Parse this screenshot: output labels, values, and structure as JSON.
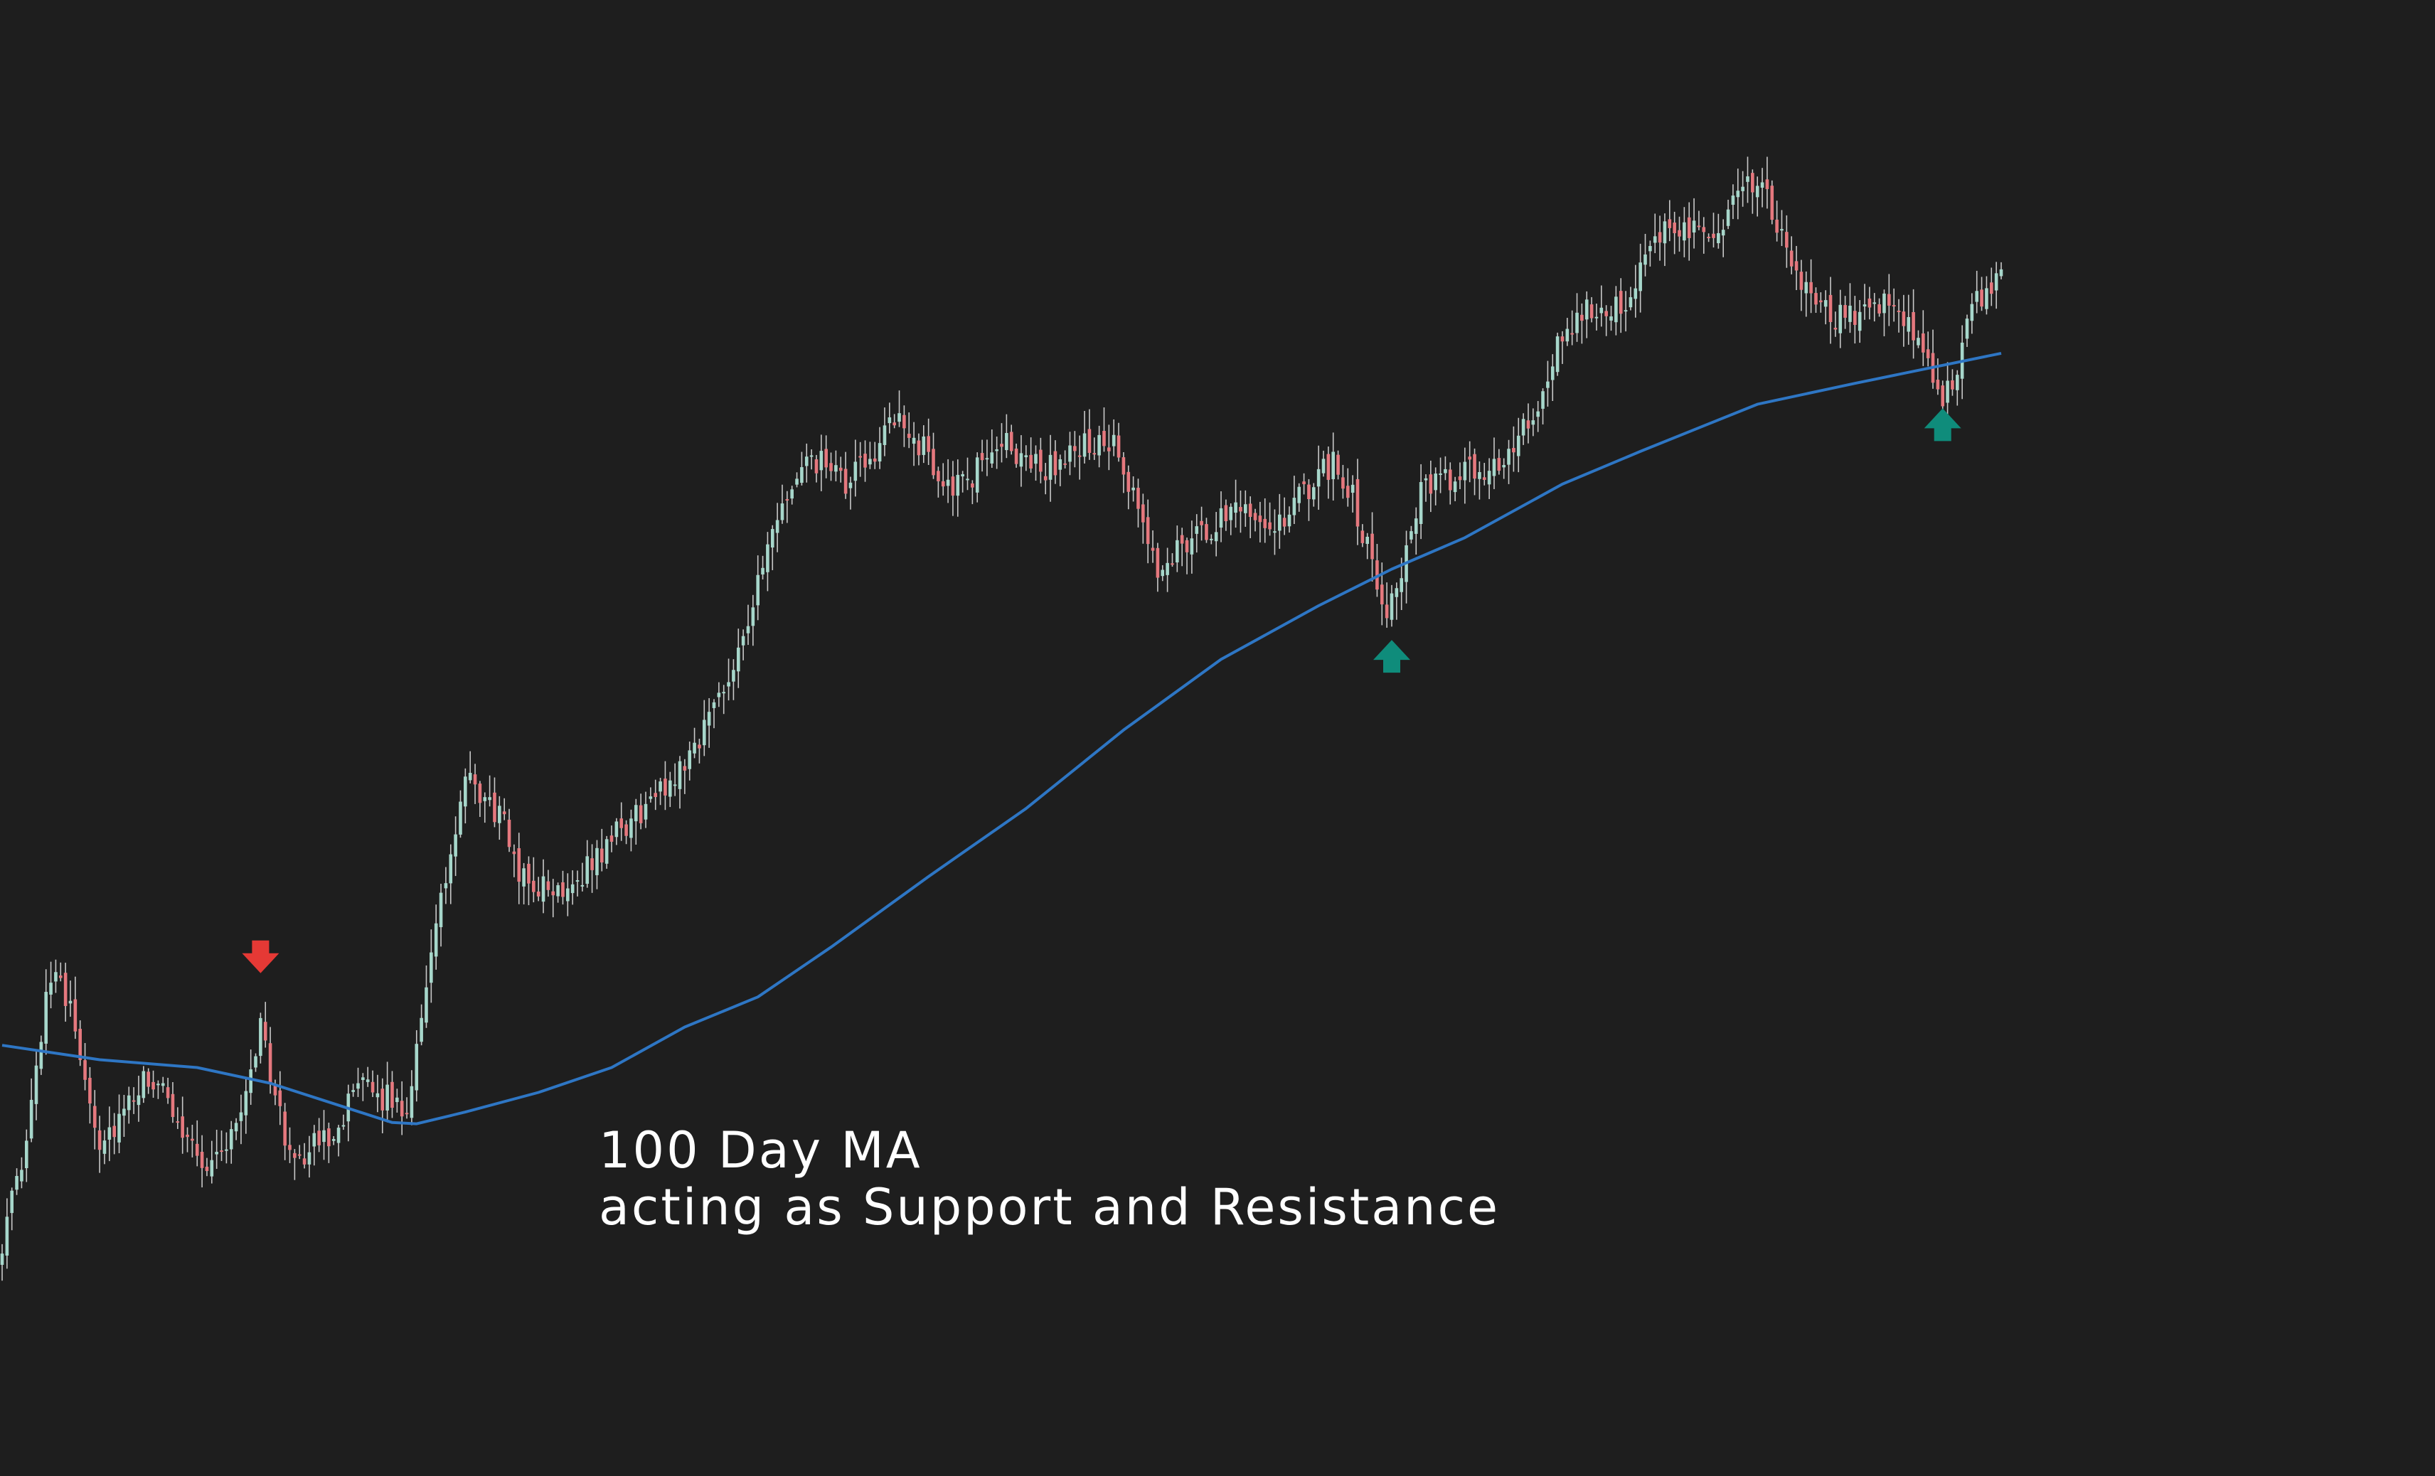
{
  "chart_data": {
    "type": "candlestick",
    "background": "#1e1e1e",
    "colors": {
      "up": "#a7d7cb",
      "down": "#e5787e",
      "wick": "#c9c9c9",
      "moving_average": "#2e76c4",
      "support_arrow": "#0f8c7b",
      "resistance_arrow": "#e53935"
    },
    "grid": false,
    "axes_visible": false,
    "ylim": [
      0,
      100
    ],
    "annotation_lines": [
      "100 Day MA",
      "acting as Support and Resistance"
    ],
    "moving_average": {
      "period": 100,
      "points": [
        [
          0,
          23.9
        ],
        [
          20,
          22.8
        ],
        [
          40,
          22.2
        ],
        [
          55,
          21.0
        ],
        [
          70,
          19.2
        ],
        [
          80,
          18.0
        ],
        [
          85,
          17.9
        ],
        [
          95,
          18.8
        ],
        [
          110,
          20.3
        ],
        [
          125,
          22.2
        ],
        [
          140,
          25.3
        ],
        [
          155,
          27.6
        ],
        [
          170,
          31.4
        ],
        [
          190,
          36.8
        ],
        [
          210,
          42.0
        ],
        [
          230,
          48.0
        ],
        [
          250,
          53.4
        ],
        [
          270,
          57.5
        ],
        [
          285,
          60.3
        ],
        [
          300,
          62.7
        ],
        [
          320,
          66.8
        ],
        [
          336,
          69.3
        ],
        [
          350,
          71.4
        ],
        [
          360,
          72.9
        ],
        [
          380,
          74.5
        ],
        [
          410,
          76.8
        ]
      ]
    },
    "markers": [
      {
        "type": "resistance",
        "direction": "down",
        "bar": 53,
        "value": 30.5
      },
      {
        "type": "support",
        "direction": "up",
        "bar": 285,
        "value": 53.8
      },
      {
        "type": "support",
        "direction": "up",
        "bar": 398,
        "value": 71.5
      }
    ],
    "path_keypoints": [
      [
        0,
        9.0
      ],
      [
        5,
        16.0
      ],
      [
        9,
        28.0
      ],
      [
        11,
        30.5
      ],
      [
        16,
        23.5
      ],
      [
        20,
        16.5
      ],
      [
        25,
        18.5
      ],
      [
        30,
        21.5
      ],
      [
        35,
        19.0
      ],
      [
        42,
        14.5
      ],
      [
        48,
        17.5
      ],
      [
        53,
        25.5
      ],
      [
        58,
        16.5
      ],
      [
        62,
        15.5
      ],
      [
        68,
        17.5
      ],
      [
        73,
        20.5
      ],
      [
        78,
        20.0
      ],
      [
        83,
        19.0
      ],
      [
        87,
        29.0
      ],
      [
        95,
        44.0
      ],
      [
        102,
        41.5
      ],
      [
        107,
        36.5
      ],
      [
        113,
        35.5
      ],
      [
        120,
        37.5
      ],
      [
        126,
        40.0
      ],
      [
        133,
        42.5
      ],
      [
        137,
        44.0
      ],
      [
        143,
        47.5
      ],
      [
        148,
        51.5
      ],
      [
        153,
        56.5
      ],
      [
        157,
        61.5
      ],
      [
        161,
        66.0
      ],
      [
        165,
        68.0
      ],
      [
        168,
        68.5
      ],
      [
        173,
        66.5
      ],
      [
        178,
        69.0
      ],
      [
        183,
        71.5
      ],
      [
        188,
        70.0
      ],
      [
        193,
        67.0
      ],
      [
        198,
        66.5
      ],
      [
        203,
        70.0
      ],
      [
        207,
        69.5
      ],
      [
        213,
        68.0
      ],
      [
        218,
        68.5
      ],
      [
        222,
        70.0
      ],
      [
        228,
        69.5
      ],
      [
        233,
        64.5
      ],
      [
        237,
        60.0
      ],
      [
        242,
        62.5
      ],
      [
        248,
        63.0
      ],
      [
        253,
        66.0
      ],
      [
        257,
        64.5
      ],
      [
        262,
        63.5
      ],
      [
        266,
        65.5
      ],
      [
        269,
        67.0
      ],
      [
        273,
        68.5
      ],
      [
        277,
        66.0
      ],
      [
        281,
        60.5
      ],
      [
        284,
        57.5
      ],
      [
        287,
        60.5
      ],
      [
        291,
        66.0
      ],
      [
        295,
        67.0
      ],
      [
        300,
        67.5
      ],
      [
        305,
        68.0
      ],
      [
        310,
        69.5
      ],
      [
        315,
        72.5
      ],
      [
        319,
        77.0
      ],
      [
        323,
        79.5
      ],
      [
        328,
        80.5
      ],
      [
        333,
        81.0
      ],
      [
        338,
        84.0
      ],
      [
        342,
        87.0
      ],
      [
        346,
        86.5
      ],
      [
        350,
        85.0
      ],
      [
        355,
        88.0
      ],
      [
        359,
        90.0
      ],
      [
        362,
        88.5
      ],
      [
        366,
        84.5
      ],
      [
        371,
        80.5
      ],
      [
        376,
        79.5
      ],
      [
        381,
        80.0
      ],
      [
        386,
        81.0
      ],
      [
        390,
        79.5
      ],
      [
        394,
        76.5
      ],
      [
        397,
        73.5
      ],
      [
        400,
        74.5
      ],
      [
        403,
        79.0
      ],
      [
        407,
        82.0
      ],
      [
        410,
        83.0
      ]
    ],
    "num_bars": 411
  }
}
